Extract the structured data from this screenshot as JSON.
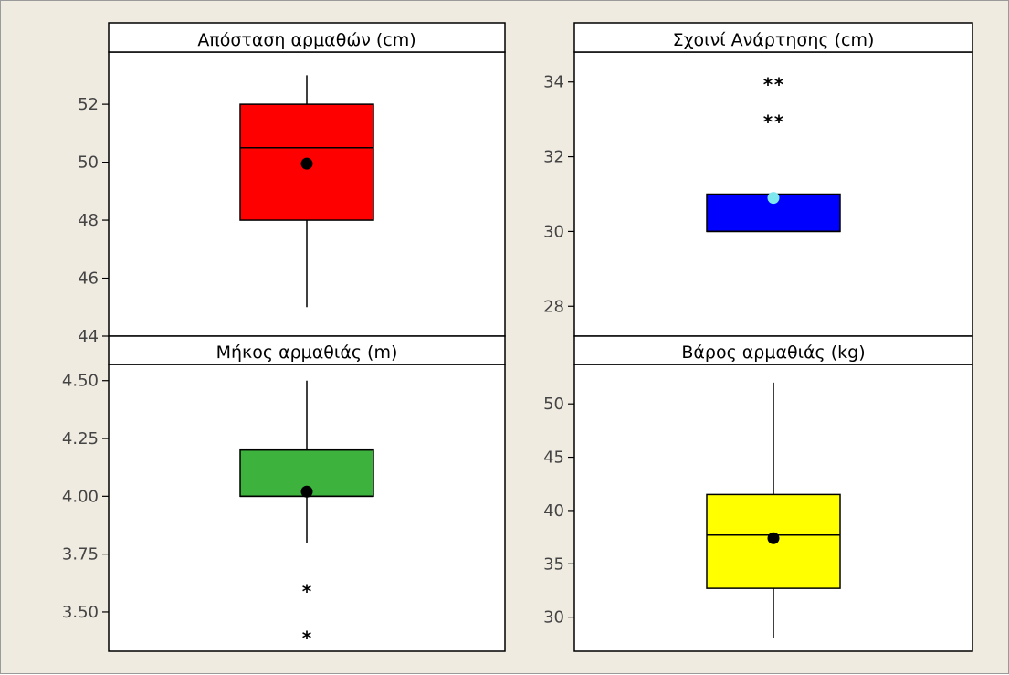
{
  "chart_data": [
    {
      "type": "box",
      "title": "Απόσταση αρμαθών (cm)",
      "ylim": [
        44,
        53.8
      ],
      "ticks": [
        44,
        46,
        48,
        50,
        52
      ],
      "tick_labels": [
        "44",
        "46",
        "48",
        "50",
        "52"
      ],
      "box": {
        "whisker_low": 45,
        "q1": 48,
        "median": 50.5,
        "q3": 52,
        "whisker_high": 53
      },
      "mean": 49.95,
      "outliers": [],
      "fill_color": "#ff0000",
      "mean_color": "#000000"
    },
    {
      "type": "box",
      "title": "Σχοινί Ανάρτησης (cm)",
      "ylim": [
        27.2,
        34.8
      ],
      "ticks": [
        28,
        30,
        32,
        34
      ],
      "tick_labels": [
        "28",
        "30",
        "32",
        "34"
      ],
      "box": {
        "whisker_low": 30,
        "q1": 30,
        "median": 30,
        "q3": 31,
        "whisker_high": 31
      },
      "mean": 30.9,
      "outliers": [
        33,
        34
      ],
      "outlier_marker": "**",
      "fill_color": "#0000ff",
      "mean_color": "#7fe8ef"
    },
    {
      "type": "box",
      "title": "Μήκος αρμαθιάς (m)",
      "ylim": [
        3.33,
        4.57
      ],
      "ticks": [
        3.5,
        3.75,
        4.0,
        4.25,
        4.5
      ],
      "tick_labels": [
        "3.50",
        "3.75",
        "4.00",
        "4.25",
        "4.50"
      ],
      "box": {
        "whisker_low": 3.8,
        "q1": 4.0,
        "median": 4.0,
        "q3": 4.2,
        "whisker_high": 4.5
      },
      "mean": 4.02,
      "outliers": [
        3.4,
        3.6
      ],
      "outlier_marker": "*",
      "fill_color": "#3db33d",
      "mean_color": "#000000"
    },
    {
      "type": "box",
      "title": "Βάρος αρμαθιάς (kg)",
      "ylim": [
        26.8,
        53.7
      ],
      "ticks": [
        30,
        35,
        40,
        45,
        50
      ],
      "tick_labels": [
        "30",
        "35",
        "40",
        "45",
        "50"
      ],
      "box": {
        "whisker_low": 28,
        "q1": 32.7,
        "median": 37.7,
        "q3": 41.5,
        "whisker_high": 52
      },
      "mean": 37.4,
      "outliers": [],
      "fill_color": "#ffff00",
      "mean_color": "#000000"
    }
  ]
}
